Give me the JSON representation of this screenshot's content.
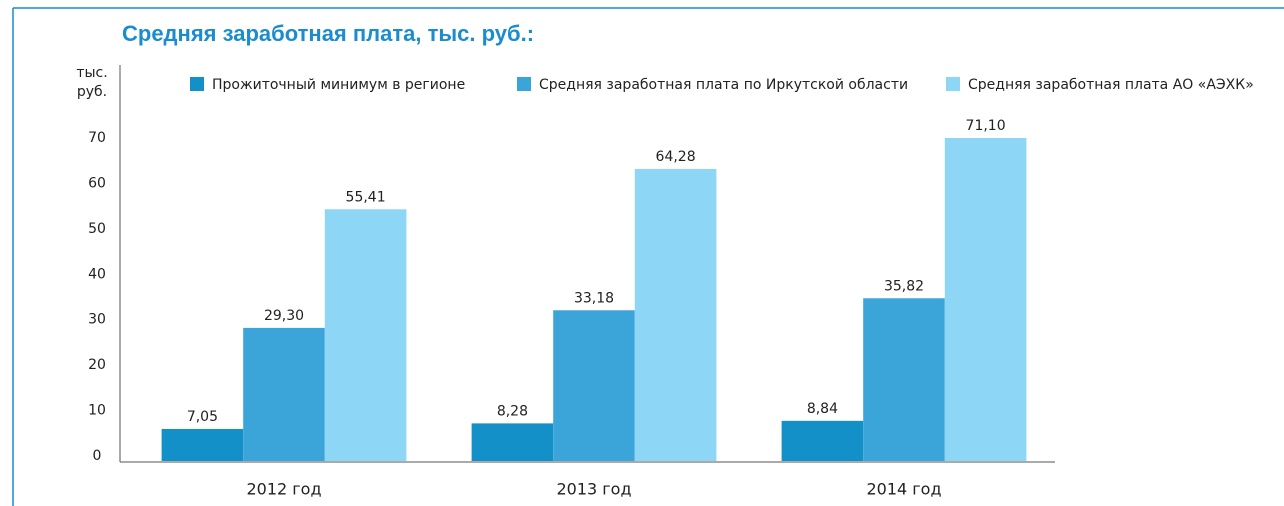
{
  "chart_data": {
    "type": "bar",
    "title": "Средняя заработная плата, тыс. руб.:",
    "y_label": "тыс. руб.",
    "categories": [
      "2012 год",
      "2013 год",
      "2014 год"
    ],
    "series": [
      {
        "name": "Прожиточный минимум в регионе",
        "color": "#1390c8",
        "values": [
          7.05,
          8.28,
          8.84
        ],
        "value_labels": [
          "7,05",
          "8,28",
          "8,84"
        ]
      },
      {
        "name": "Средняя заработная плата по Иркутской области",
        "color": "#3ba5d9",
        "values": [
          29.3,
          33.18,
          35.82
        ],
        "value_labels": [
          "29,30",
          "33,18",
          "35,82"
        ]
      },
      {
        "name": "Средняя заработная плата АО «АЭХК»",
        "color": "#8dd6f5",
        "values": [
          55.41,
          64.28,
          71.1
        ],
        "value_labels": [
          "55,41",
          "64,28",
          "71,10"
        ]
      }
    ],
    "ylim": [
      0,
      70
    ],
    "yticks": [
      0,
      10,
      20,
      30,
      40,
      50,
      60,
      70
    ],
    "grid": false
  }
}
